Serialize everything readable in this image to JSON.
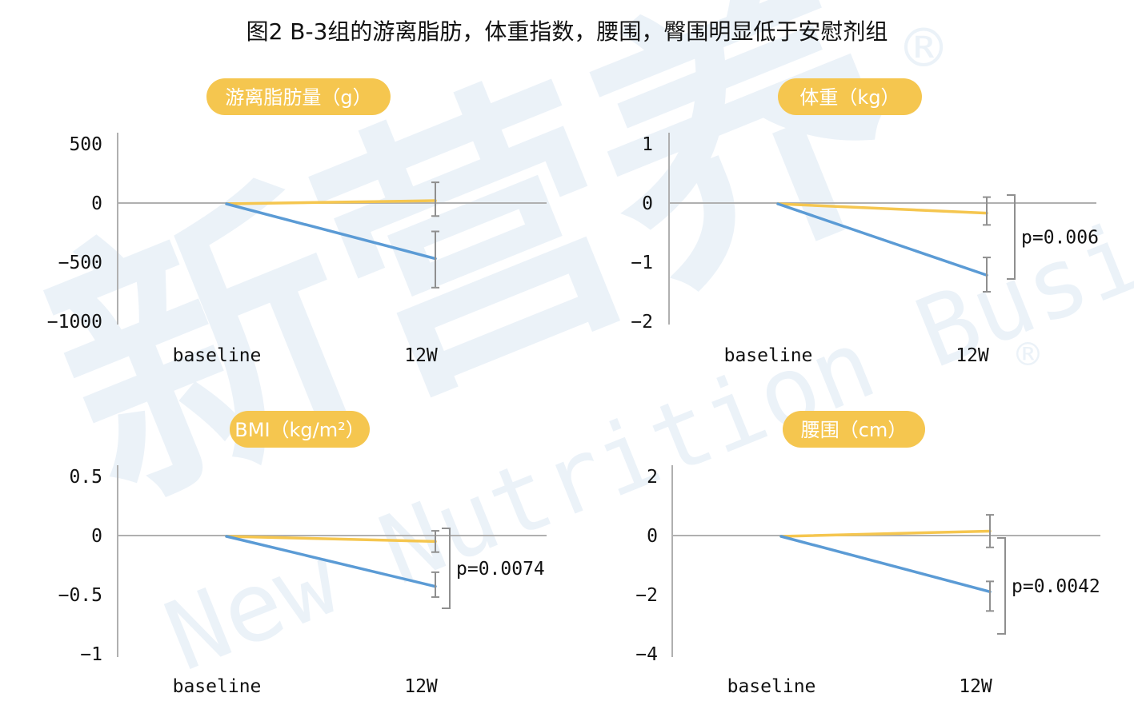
{
  "figure_title": "图2 B-3组的游离脂肪，体重指数，腰围，臀围明显低于安慰剂组",
  "watermark": {
    "chinese": "新营养",
    "english": "New Nutrition Business",
    "mark": "®"
  },
  "colors": {
    "series_yellow": "#f5c64f",
    "series_blue": "#5b9bd5",
    "axis": "#b0b0b0",
    "errorbar": "#8f8f8f",
    "pill_bg": "#f5c64f",
    "pill_text": "#ffffff",
    "watermark": "#dce8f4"
  },
  "chart_data": [
    {
      "type": "line",
      "title": "游离脂肪量（g）",
      "categories": [
        "baseline",
        "12W"
      ],
      "ylim": [
        -1000,
        500
      ],
      "yticks": [
        500,
        0,
        -500,
        -1000
      ],
      "ytick_labels": [
        "500",
        "0",
        "−500",
        "−1000"
      ],
      "series": [
        {
          "color": "#f5c64f",
          "values": [
            0,
            20
          ],
          "error_12w": [
            -110,
            175
          ]
        },
        {
          "color": "#5b9bd5",
          "values": [
            0,
            -470
          ],
          "error_12w": [
            -715,
            -240
          ]
        }
      ],
      "p_value": ""
    },
    {
      "type": "line",
      "title": "体重（kg）",
      "categories": [
        "baseline",
        "12W"
      ],
      "ylim": [
        -2,
        1
      ],
      "yticks": [
        1,
        0,
        -1,
        -2
      ],
      "ytick_labels": [
        "1",
        "0",
        "−1",
        "−2"
      ],
      "series": [
        {
          "color": "#f5c64f",
          "values": [
            0,
            -0.17
          ],
          "error_12w": [
            -0.37,
            0.1
          ]
        },
        {
          "color": "#5b9bd5",
          "values": [
            0,
            -1.22
          ],
          "error_12w": [
            -1.5,
            -0.92
          ]
        }
      ],
      "p_value": "p=0.006"
    },
    {
      "type": "line",
      "title": "BMI（kg/m²）",
      "categories": [
        "baseline",
        "12W"
      ],
      "ylim": [
        -1,
        0.5
      ],
      "yticks": [
        0.5,
        0,
        -0.5,
        -1
      ],
      "ytick_labels": [
        "0.5",
        "0",
        "−0.5",
        "−1"
      ],
      "series": [
        {
          "color": "#f5c64f",
          "values": [
            0,
            -0.05
          ],
          "error_12w": [
            -0.14,
            0.04
          ]
        },
        {
          "color": "#5b9bd5",
          "values": [
            0,
            -0.43
          ],
          "error_12w": [
            -0.52,
            -0.31
          ]
        }
      ],
      "p_value": "p=0.0074"
    },
    {
      "type": "line",
      "title": "腰围（cm）",
      "categories": [
        "baseline",
        "12W"
      ],
      "ylim": [
        -4,
        2
      ],
      "yticks": [
        2,
        0,
        -2,
        -4
      ],
      "ytick_labels": [
        "2",
        "0",
        "−2",
        "−4"
      ],
      "series": [
        {
          "color": "#f5c64f",
          "values": [
            0,
            0.15
          ],
          "error_12w": [
            -0.4,
            0.7
          ]
        },
        {
          "color": "#5b9bd5",
          "values": [
            0,
            -1.9
          ],
          "error_12w": [
            -2.55,
            -1.55
          ]
        }
      ],
      "p_value": "p=0.0042"
    }
  ]
}
